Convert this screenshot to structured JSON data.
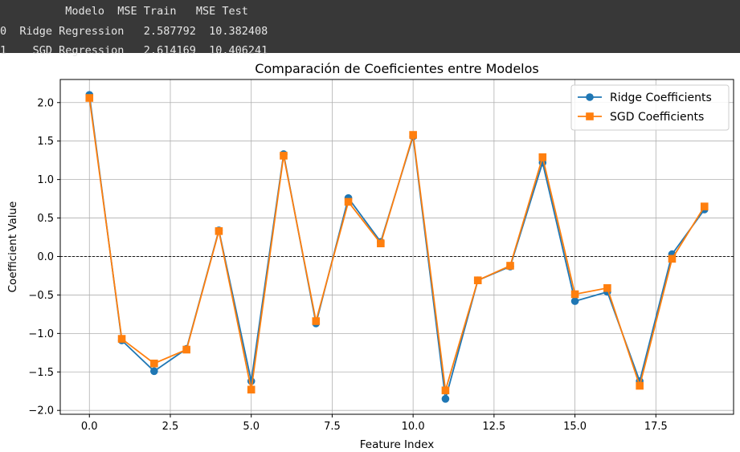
{
  "console": {
    "header": "          Modelo  MSE Train   MSE Test",
    "rows": [
      "0  Ridge Regression   2.587792  10.382408",
      "1    SGD Regression   2.614169  10.406241"
    ]
  },
  "chart_data": {
    "type": "line",
    "title": "Comparación de Coeficientes entre Modelos",
    "xlabel": "Feature Index",
    "ylabel": "Coefficient Value",
    "xlim": [
      -0.9,
      19.9
    ],
    "ylim": [
      -2.05,
      2.3
    ],
    "x_ticks": [
      0.0,
      2.5,
      5.0,
      7.5,
      10.0,
      12.5,
      15.0,
      17.5
    ],
    "x_tick_labels": [
      "0.0",
      "2.5",
      "5.0",
      "7.5",
      "10.0",
      "12.5",
      "15.0",
      "17.5"
    ],
    "y_ticks": [
      -2.0,
      -1.5,
      -1.0,
      -0.5,
      0.0,
      0.5,
      1.0,
      1.5,
      2.0
    ],
    "y_tick_labels": [
      "−2.0",
      "−1.5",
      "−1.0",
      "−0.5",
      "0.0",
      "0.5",
      "1.0",
      "1.5",
      "2.0"
    ],
    "grid": true,
    "zero_line": true,
    "legend_position": "top-right",
    "x": [
      0,
      1,
      2,
      3,
      4,
      5,
      6,
      7,
      8,
      9,
      10,
      11,
      12,
      13,
      14,
      15,
      16,
      17,
      18,
      19
    ],
    "series": [
      {
        "name": "Ridge Coefficients",
        "color": "#1f77b4",
        "marker": "circle",
        "values": [
          2.1,
          -1.09,
          -1.49,
          -1.2,
          0.34,
          -1.62,
          1.33,
          -0.87,
          0.76,
          0.19,
          1.56,
          -1.85,
          -0.31,
          -0.13,
          1.22,
          -0.58,
          -0.46,
          -1.62,
          0.03,
          0.61
        ]
      },
      {
        "name": "SGD Coefficients",
        "color": "#ff7f0e",
        "marker": "square",
        "values": [
          2.06,
          -1.07,
          -1.39,
          -1.21,
          0.33,
          -1.73,
          1.31,
          -0.84,
          0.71,
          0.17,
          1.58,
          -1.74,
          -0.31,
          -0.12,
          1.29,
          -0.49,
          -0.41,
          -1.68,
          -0.03,
          0.65
        ]
      }
    ]
  }
}
